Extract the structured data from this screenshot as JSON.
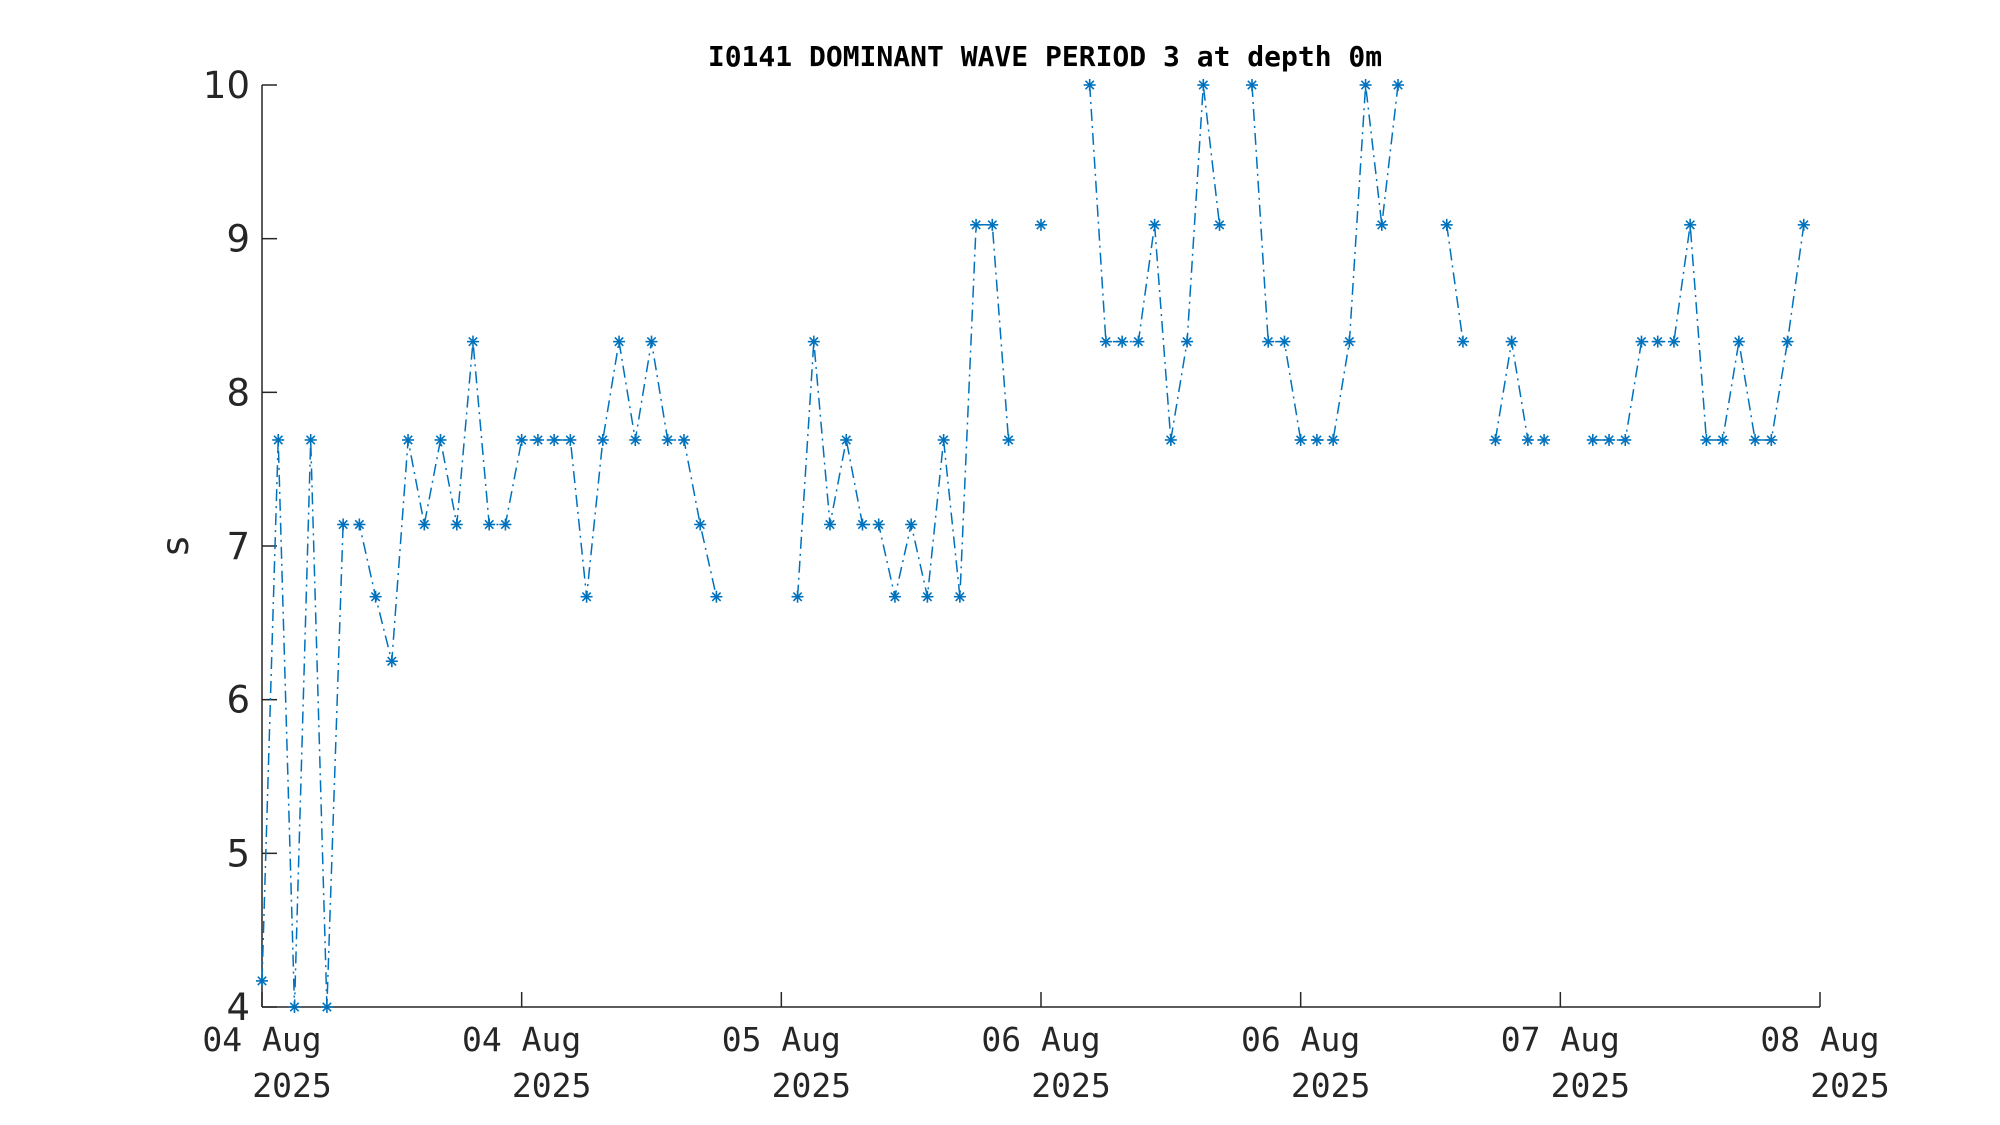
{
  "chart_data": {
    "type": "line",
    "title": "I0141 DOMINANT WAVE PERIOD 3 at depth 0m",
    "xlabel": "",
    "ylabel": "s",
    "ylim": [
      4,
      10
    ],
    "xlim": [
      "2025-08-04T00:00",
      "2025-08-08T00:00"
    ],
    "yticks": [
      4,
      5,
      6,
      7,
      8,
      9,
      10
    ],
    "xticks": [
      {
        "t": "2025-08-04T00:00",
        "line1": "04 Aug",
        "line2": "2025"
      },
      {
        "t": "2025-08-04T16:00",
        "line1": "04 Aug",
        "line2": "2025"
      },
      {
        "t": "2025-08-05T08:00",
        "line1": "05 Aug",
        "line2": "2025"
      },
      {
        "t": "2025-08-06T00:00",
        "line1": "06 Aug",
        "line2": "2025"
      },
      {
        "t": "2025-08-06T16:00",
        "line1": "06 Aug",
        "line2": "2025"
      },
      {
        "t": "2025-08-07T08:00",
        "line1": "07 Aug",
        "line2": "2025"
      },
      {
        "t": "2025-08-08T00:00",
        "line1": "08 Aug",
        "line2": "2025"
      }
    ],
    "grid": false,
    "series": [
      {
        "color": "#0072BD",
        "line_style": "dash-dot",
        "marker": "asterisk",
        "points": [
          {
            "t": "2025-08-04T00:00",
            "v": 4.17
          },
          {
            "t": "2025-08-04T01:00",
            "v": 7.69
          },
          {
            "t": "2025-08-04T02:00",
            "v": 4.0
          },
          {
            "t": "2025-08-04T03:00",
            "v": 7.69
          },
          {
            "t": "2025-08-04T04:00",
            "v": 4.0
          },
          {
            "t": "2025-08-04T05:00",
            "v": 7.14
          },
          {
            "t": "2025-08-04T06:00",
            "v": 7.14
          },
          {
            "t": "2025-08-04T07:00",
            "v": 6.67
          },
          {
            "t": "2025-08-04T08:00",
            "v": 6.25
          },
          {
            "t": "2025-08-04T09:00",
            "v": 7.69
          },
          {
            "t": "2025-08-04T10:00",
            "v": 7.14
          },
          {
            "t": "2025-08-04T11:00",
            "v": 7.69
          },
          {
            "t": "2025-08-04T12:00",
            "v": 7.14
          },
          {
            "t": "2025-08-04T13:00",
            "v": 8.33
          },
          {
            "t": "2025-08-04T14:00",
            "v": 7.14
          },
          {
            "t": "2025-08-04T15:00",
            "v": 7.14
          },
          {
            "t": "2025-08-04T16:00",
            "v": 7.69
          },
          {
            "t": "2025-08-04T17:00",
            "v": 7.69
          },
          {
            "t": "2025-08-04T18:00",
            "v": 7.69
          },
          {
            "t": "2025-08-04T19:00",
            "v": 7.69
          },
          {
            "t": "2025-08-04T20:00",
            "v": 6.67
          },
          {
            "t": "2025-08-04T21:00",
            "v": 7.69
          },
          {
            "t": "2025-08-04T22:00",
            "v": 8.33
          },
          {
            "t": "2025-08-04T23:00",
            "v": 7.69
          },
          {
            "t": "2025-08-05T00:00",
            "v": 8.33
          },
          {
            "t": "2025-08-05T01:00",
            "v": 7.69
          },
          {
            "t": "2025-08-05T02:00",
            "v": 7.69
          },
          {
            "t": "2025-08-05T03:00",
            "v": 7.14
          },
          {
            "t": "2025-08-05T04:00",
            "v": 6.67
          },
          {
            "t": "2025-08-05T05:00",
            "v": null
          },
          {
            "t": "2025-08-05T09:00",
            "v": 6.67
          },
          {
            "t": "2025-08-05T10:00",
            "v": 8.33
          },
          {
            "t": "2025-08-05T11:00",
            "v": 7.14
          },
          {
            "t": "2025-08-05T12:00",
            "v": 7.69
          },
          {
            "t": "2025-08-05T13:00",
            "v": 7.14
          },
          {
            "t": "2025-08-05T14:00",
            "v": 7.14
          },
          {
            "t": "2025-08-05T15:00",
            "v": 6.67
          },
          {
            "t": "2025-08-05T16:00",
            "v": 7.14
          },
          {
            "t": "2025-08-05T17:00",
            "v": 6.67
          },
          {
            "t": "2025-08-05T18:00",
            "v": 7.69
          },
          {
            "t": "2025-08-05T19:00",
            "v": 6.67
          },
          {
            "t": "2025-08-05T20:00",
            "v": 9.09
          },
          {
            "t": "2025-08-05T21:00",
            "v": 9.09
          },
          {
            "t": "2025-08-05T22:00",
            "v": 7.69
          },
          {
            "t": "2025-08-05T23:00",
            "v": null
          },
          {
            "t": "2025-08-06T00:00",
            "v": 9.09
          },
          {
            "t": "2025-08-06T01:00",
            "v": null
          },
          {
            "t": "2025-08-06T03:00",
            "v": 10.0
          },
          {
            "t": "2025-08-06T04:00",
            "v": 8.33
          },
          {
            "t": "2025-08-06T05:00",
            "v": 8.33
          },
          {
            "t": "2025-08-06T06:00",
            "v": 8.33
          },
          {
            "t": "2025-08-06T07:00",
            "v": 9.09
          },
          {
            "t": "2025-08-06T08:00",
            "v": 7.69
          },
          {
            "t": "2025-08-06T09:00",
            "v": 8.33
          },
          {
            "t": "2025-08-06T10:00",
            "v": 10.0
          },
          {
            "t": "2025-08-06T11:00",
            "v": 9.09
          },
          {
            "t": "2025-08-06T12:00",
            "v": null
          },
          {
            "t": "2025-08-06T13:00",
            "v": 10.0
          },
          {
            "t": "2025-08-06T14:00",
            "v": 8.33
          },
          {
            "t": "2025-08-06T15:00",
            "v": 8.33
          },
          {
            "t": "2025-08-06T16:00",
            "v": 7.69
          },
          {
            "t": "2025-08-06T17:00",
            "v": 7.69
          },
          {
            "t": "2025-08-06T18:00",
            "v": 7.69
          },
          {
            "t": "2025-08-06T19:00",
            "v": 8.33
          },
          {
            "t": "2025-08-06T20:00",
            "v": 10.0
          },
          {
            "t": "2025-08-06T21:00",
            "v": 9.09
          },
          {
            "t": "2025-08-06T22:00",
            "v": 10.0
          },
          {
            "t": "2025-08-06T23:00",
            "v": null
          },
          {
            "t": "2025-08-07T01:00",
            "v": 9.09
          },
          {
            "t": "2025-08-07T02:00",
            "v": 8.33
          },
          {
            "t": "2025-08-07T03:00",
            "v": null
          },
          {
            "t": "2025-08-07T04:00",
            "v": 7.69
          },
          {
            "t": "2025-08-07T05:00",
            "v": 8.33
          },
          {
            "t": "2025-08-07T06:00",
            "v": 7.69
          },
          {
            "t": "2025-08-07T07:00",
            "v": 7.69
          },
          {
            "t": "2025-08-07T08:00",
            "v": null
          },
          {
            "t": "2025-08-07T10:00",
            "v": 7.69
          },
          {
            "t": "2025-08-07T11:00",
            "v": 7.69
          },
          {
            "t": "2025-08-07T12:00",
            "v": 7.69
          },
          {
            "t": "2025-08-07T13:00",
            "v": 8.33
          },
          {
            "t": "2025-08-07T14:00",
            "v": 8.33
          },
          {
            "t": "2025-08-07T15:00",
            "v": 8.33
          },
          {
            "t": "2025-08-07T16:00",
            "v": 9.09
          },
          {
            "t": "2025-08-07T17:00",
            "v": 7.69
          },
          {
            "t": "2025-08-07T18:00",
            "v": 7.69
          },
          {
            "t": "2025-08-07T19:00",
            "v": 8.33
          },
          {
            "t": "2025-08-07T20:00",
            "v": 7.69
          },
          {
            "t": "2025-08-07T21:00",
            "v": 7.69
          },
          {
            "t": "2025-08-07T22:00",
            "v": 8.33
          },
          {
            "t": "2025-08-07T23:00",
            "v": 9.09
          }
        ]
      }
    ]
  }
}
